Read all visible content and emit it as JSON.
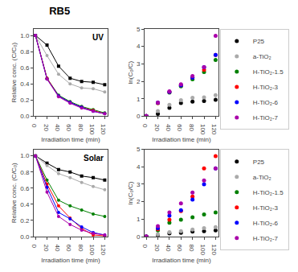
{
  "chart_data": [
    {
      "type": "line",
      "title": "RB5",
      "annotations": [
        "UV"
      ],
      "x": [
        0,
        20,
        40,
        60,
        80,
        100,
        120
      ],
      "xlabel": "Irradiation time (min)",
      "ylabel": "Relative conc. (C/C₀)",
      "xlim": [
        -3,
        125
      ],
      "xticks": [
        0,
        20,
        40,
        60,
        80,
        100,
        120
      ],
      "ylim": [
        0,
        1.08
      ],
      "yticks": [
        {
          "value": 0,
          "label": "0.0"
        },
        0.2,
        0.4,
        0.6,
        0.8,
        {
          "value": 1,
          "label": "1.0"
        }
      ],
      "grid": false,
      "series": [
        {
          "color": "#000000",
          "marker": "square",
          "line_style": "solid",
          "values": [
            1.0,
            0.88,
            0.62,
            0.47,
            0.43,
            0.42,
            0.39
          ]
        },
        {
          "color": "#aaaaaa",
          "marker": "circle",
          "line_style": "solid",
          "values": [
            1.0,
            0.75,
            0.52,
            0.4,
            0.35,
            0.34,
            0.3
          ]
        },
        {
          "color": "#008000",
          "marker": "circle",
          "line_style": "solid",
          "values": [
            1.0,
            0.47,
            0.26,
            0.18,
            0.12,
            0.08,
            0.04
          ]
        },
        {
          "color": "#ff0000",
          "marker": "circle",
          "line_style": "solid",
          "values": [
            1.0,
            0.47,
            0.25,
            0.17,
            0.11,
            0.07,
            0.03
          ]
        },
        {
          "color": "#0000ff",
          "marker": "circle",
          "line_style": "solid",
          "values": [
            1.0,
            0.46,
            0.25,
            0.17,
            0.11,
            0.06,
            0.03
          ]
        },
        {
          "color": "#aa00aa",
          "marker": "circle",
          "line_style": "solid",
          "values": [
            1.0,
            0.46,
            0.24,
            0.16,
            0.1,
            0.06,
            0.03
          ]
        }
      ]
    },
    {
      "type": "scatter",
      "x": [
        0,
        20,
        40,
        60,
        80,
        100,
        120
      ],
      "xlabel": "Irradiation time (min)",
      "ylabel": "ln(C₀/C)",
      "xlim": [
        -3,
        125
      ],
      "xticks": [
        0,
        20,
        40,
        60,
        80,
        100,
        120
      ],
      "ylim": [
        0,
        5
      ],
      "yticks": [
        0,
        1,
        2,
        3,
        4,
        5
      ],
      "grid": false,
      "legend": "right",
      "series": [
        {
          "name": "P25",
          "color": "#000000",
          "marker": "circle",
          "values": [
            0.0,
            0.13,
            0.48,
            0.75,
            0.84,
            0.87,
            0.94
          ]
        },
        {
          "name": "a-TiO₂",
          "color": "#aaaaaa",
          "marker": "circle",
          "values": [
            0.0,
            0.29,
            0.65,
            0.92,
            1.05,
            1.08,
            1.2
          ]
        },
        {
          "name": "H-TiO₂-1.5",
          "color": "#008000",
          "marker": "circle",
          "values": [
            0.0,
            0.75,
            1.35,
            1.71,
            2.12,
            2.53,
            3.22
          ]
        },
        {
          "name": "H-TiO₂-3",
          "color": "#ff0000",
          "marker": "circle",
          "values": [
            0.0,
            0.75,
            1.39,
            1.77,
            2.21,
            2.66,
            3.51
          ]
        },
        {
          "name": "H-TiO₂-6",
          "color": "#0000ff",
          "marker": "circle",
          "values": [
            0.0,
            0.78,
            1.39,
            1.77,
            2.21,
            2.81,
            3.51
          ]
        },
        {
          "name": "H-TiO₂-7",
          "color": "#aa00aa",
          "marker": "circle",
          "values": [
            0.0,
            0.78,
            1.42,
            1.83,
            2.3,
            2.81,
            4.61
          ]
        }
      ]
    },
    {
      "type": "line",
      "annotations": [
        "Solar"
      ],
      "x": [
        0,
        20,
        40,
        60,
        80,
        100,
        120
      ],
      "xlabel": "Irradiation time (min)",
      "ylabel": "Relative conc. (C/C₀)",
      "xlim": [
        -3,
        125
      ],
      "xticks": [
        0,
        20,
        40,
        60,
        80,
        100,
        120
      ],
      "ylim": [
        0,
        1.08
      ],
      "yticks": [
        {
          "value": 0,
          "label": "0.0"
        },
        0.2,
        0.4,
        0.6,
        0.8,
        {
          "value": 1,
          "label": "1.0"
        }
      ],
      "grid": false,
      "series": [
        {
          "color": "#000000",
          "marker": "square",
          "line_style": "solid",
          "values": [
            1.0,
            0.91,
            0.83,
            0.8,
            0.75,
            0.73,
            0.7
          ]
        },
        {
          "color": "#aaaaaa",
          "marker": "circle",
          "line_style": "solid",
          "values": [
            1.0,
            0.88,
            0.78,
            0.73,
            0.67,
            0.62,
            0.58
          ]
        },
        {
          "color": "#008000",
          "marker": "circle",
          "line_style": "solid",
          "values": [
            1.0,
            0.7,
            0.45,
            0.38,
            0.33,
            0.28,
            0.25
          ]
        },
        {
          "color": "#ff0000",
          "marker": "circle",
          "line_style": "solid",
          "values": [
            1.0,
            0.65,
            0.38,
            0.23,
            0.1,
            0.02,
            0.01
          ]
        },
        {
          "color": "#0000ff",
          "marker": "circle",
          "line_style": "solid",
          "values": [
            1.0,
            0.61,
            0.3,
            0.22,
            0.12,
            0.05,
            0.02
          ]
        },
        {
          "color": "#aa00aa",
          "marker": "circle",
          "line_style": "solid",
          "values": [
            1.0,
            0.55,
            0.25,
            0.15,
            0.08,
            0.04,
            0.02
          ]
        }
      ]
    },
    {
      "type": "scatter",
      "x": [
        0,
        20,
        40,
        60,
        80,
        100,
        120
      ],
      "xlabel": "Irradiation time (min)",
      "ylabel": "ln(C₀/C)",
      "xlim": [
        -3,
        125
      ],
      "xticks": [
        0,
        20,
        40,
        60,
        80,
        100,
        120
      ],
      "ylim": [
        0,
        5
      ],
      "yticks": [
        0,
        1,
        2,
        3,
        4,
        5
      ],
      "grid": false,
      "legend": "right",
      "series": [
        {
          "name": "P25",
          "color": "#000000",
          "marker": "circle",
          "values": [
            0.0,
            0.09,
            0.19,
            0.22,
            0.29,
            0.31,
            0.36
          ]
        },
        {
          "name": "a-TiO₂",
          "color": "#aaaaaa",
          "marker": "circle",
          "values": [
            0.0,
            0.13,
            0.25,
            0.31,
            0.4,
            0.48,
            0.54
          ]
        },
        {
          "name": "H-TiO₂-1.5",
          "color": "#008000",
          "marker": "circle",
          "values": [
            0.0,
            0.36,
            0.8,
            0.97,
            1.11,
            1.27,
            1.39
          ]
        },
        {
          "name": "H-TiO₂-3",
          "color": "#ff0000",
          "marker": "circle",
          "values": [
            0.0,
            0.43,
            0.97,
            1.47,
            2.3,
            3.91,
            4.61
          ]
        },
        {
          "name": "H-TiO₂-6",
          "color": "#0000ff",
          "marker": "circle",
          "values": [
            0.0,
            0.49,
            1.2,
            1.51,
            2.12,
            3.0,
            3.91
          ]
        },
        {
          "name": "H-TiO₂-7",
          "color": "#aa00aa",
          "marker": "circle",
          "values": [
            0.0,
            0.6,
            1.39,
            1.9,
            2.53,
            3.22,
            3.91
          ]
        }
      ]
    }
  ]
}
